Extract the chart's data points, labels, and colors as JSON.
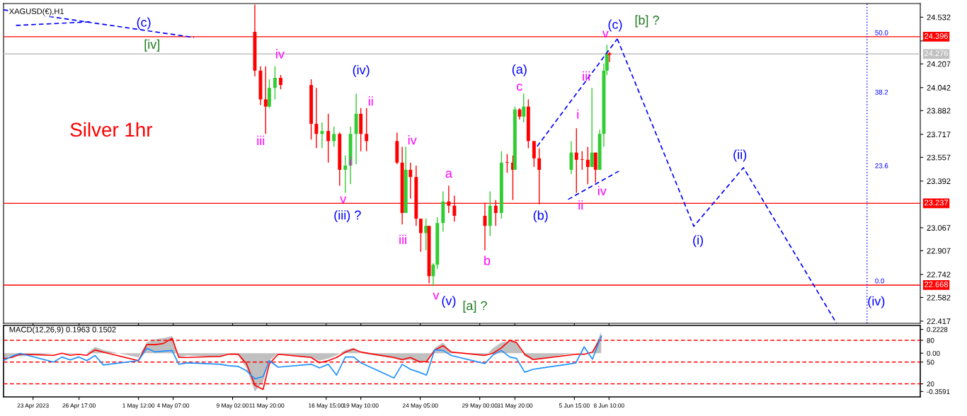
{
  "chart_data": [
    {
      "type": "candlestick",
      "title": "XAGUSD(€),H1",
      "tick_labels": "y",
      "grid": false,
      "xlim": [
        "2023-04-20T15:00",
        "2023-07-03T12:00"
      ],
      "ylim": [
        22.402,
        24.627
      ],
      "xticks": [
        {
          "value": "2023-04-23",
          "label": null
        },
        {
          "value": "2023-04-26T17:00",
          "label": null
        },
        {
          "value": "2023-05-01T12:00",
          "label": null
        },
        {
          "value": "2023-05-04T07:00",
          "label": null
        },
        {
          "value": "2023-05-09T02:00",
          "label": null
        },
        {
          "value": "2023-05-11T20:00",
          "label": null
        },
        {
          "value": "2023-05-16T15:00",
          "label": null
        },
        {
          "value": "2023-05-19T10:00",
          "label": null
        },
        {
          "value": "2023-05-24T05:00",
          "label": null
        },
        {
          "value": "2023-05-29T00:00",
          "label": null
        },
        {
          "value": "2023-05-31T20:00",
          "label": null
        },
        {
          "value": "2023-06-05T15:00",
          "label": null
        },
        {
          "value": "2023-06-08T10:00",
          "label": null
        }
      ],
      "yticks": [
        24.532,
        {
          "value": 24.367,
          "label": null
        },
        24.207,
        24.042,
        23.882,
        23.717,
        23.557,
        23.392,
        23.067,
        22.907,
        22.742,
        22.582,
        22.417
      ],
      "x": [
        "2023-05-10T21:00",
        "2023-05-11T08:00",
        "2023-05-11T18:00",
        "2023-05-12T01:00",
        "2023-05-12T12:00",
        "2023-05-12T23:00",
        "2023-05-15T10:00",
        "2023-05-15T20:00",
        "2023-05-16T07:00",
        "2023-05-16T19:00",
        "2023-05-17T06:00",
        "2023-05-17T17:00",
        "2023-05-18T04:00",
        "2023-05-18T14:00",
        "2023-05-19T01:00",
        "2023-05-19T10:00",
        "2023-05-19T21:00",
        "2023-05-22T08:00",
        "2023-05-22T18:00",
        "2023-05-23T01:00",
        "2023-05-23T10:00",
        "2023-05-23T21:00",
        "2023-05-24T06:00",
        "2023-05-24T16:00",
        "2023-05-24T22:00",
        "2023-05-25T06:00",
        "2023-05-25T14:00",
        "2023-05-26T01:00",
        "2023-05-26T12:00",
        "2023-05-26T23:00",
        "2023-05-29T10:00",
        "2023-05-29T20:00",
        "2023-05-30T07:00",
        "2023-05-30T18:00",
        "2023-05-31T05:00",
        "2023-05-31T16:00",
        "2023-05-31T20:00",
        "2023-06-01T05:00",
        "2023-06-01T13:00",
        "2023-06-01T22:00",
        "2023-06-02T09:00",
        "2023-06-02T19:00",
        "2023-06-05T09:00",
        "2023-06-05T19:00",
        "2023-06-06T06:00",
        "2023-06-06T17:00",
        "2023-06-07T01:00",
        "2023-06-07T08:00",
        "2023-06-07T16:00",
        "2023-06-08T00:00",
        "2023-06-08T06:00",
        "2023-06-08T11:00"
      ],
      "ohlc": [
        [
          24.43,
          24.62,
          24.12,
          24.16
        ],
        [
          24.16,
          24.19,
          23.92,
          23.96
        ],
        [
          23.96,
          24.19,
          23.72,
          23.91
        ],
        [
          23.91,
          24.1,
          23.9,
          24.04
        ],
        [
          24.04,
          24.19,
          23.96,
          24.11
        ],
        [
          24.11,
          24.13,
          24.03,
          24.06
        ],
        [
          24.06,
          24.1,
          23.68,
          23.79
        ],
        [
          23.79,
          24.04,
          23.62,
          23.72
        ],
        [
          23.72,
          23.8,
          23.62,
          23.74
        ],
        [
          23.74,
          23.86,
          23.52,
          23.67
        ],
        [
          23.67,
          23.77,
          23.63,
          23.72
        ],
        [
          23.72,
          23.73,
          23.36,
          23.47
        ],
        [
          23.47,
          23.57,
          23.31,
          23.5
        ],
        [
          23.5,
          23.77,
          23.37,
          23.72
        ],
        [
          23.72,
          24.0,
          23.51,
          23.86
        ],
        [
          23.86,
          23.9,
          23.6,
          23.72
        ],
        [
          23.72,
          23.9,
          23.6,
          23.67
        ],
        [
          23.67,
          23.73,
          23.51,
          23.52
        ],
        [
          23.52,
          23.63,
          23.09,
          23.17
        ],
        [
          23.17,
          23.63,
          23.17,
          23.47
        ],
        [
          23.47,
          23.52,
          23.27,
          23.42
        ],
        [
          23.42,
          23.5,
          23.08,
          23.13
        ],
        [
          23.13,
          23.13,
          22.9,
          23.03
        ],
        [
          23.03,
          23.13,
          22.91,
          23.08
        ],
        [
          23.08,
          23.08,
          22.68,
          22.73
        ],
        [
          22.73,
          22.82,
          22.66,
          22.81
        ],
        [
          22.81,
          23.14,
          22.78,
          23.1
        ],
        [
          23.1,
          23.32,
          23.04,
          23.25
        ],
        [
          23.25,
          23.36,
          23.17,
          23.22
        ],
        [
          23.22,
          23.29,
          23.11,
          23.15
        ],
        [
          23.15,
          23.24,
          22.91,
          23.08
        ],
        [
          23.08,
          23.32,
          23.01,
          23.22
        ],
        [
          23.22,
          23.26,
          23.08,
          23.17
        ],
        [
          23.17,
          23.6,
          23.13,
          23.52
        ],
        [
          23.52,
          23.58,
          23.45,
          23.52
        ],
        [
          23.52,
          23.57,
          23.26,
          23.47
        ],
        [
          23.47,
          23.91,
          23.47,
          23.89
        ],
        [
          23.89,
          23.9,
          23.82,
          23.84
        ],
        [
          23.84,
          24.0,
          23.8,
          23.91
        ],
        [
          23.91,
          23.96,
          23.62,
          23.67
        ],
        [
          23.67,
          23.67,
          23.49,
          23.55
        ],
        [
          23.55,
          23.62,
          23.23,
          23.47
        ],
        [
          23.47,
          23.67,
          23.44,
          23.59
        ],
        [
          23.59,
          23.76,
          23.31,
          23.54
        ],
        [
          23.54,
          23.6,
          23.47,
          23.54
        ],
        [
          23.54,
          23.63,
          23.37,
          23.49
        ],
        [
          23.49,
          24.04,
          23.49,
          23.59
        ],
        [
          23.59,
          23.59,
          23.38,
          23.47
        ],
        [
          23.47,
          23.75,
          23.47,
          23.72
        ],
        [
          23.72,
          24.21,
          23.63,
          24.16
        ],
        [
          24.16,
          24.34,
          24.13,
          24.28
        ],
        [
          24.28,
          24.29,
          24.22,
          24.27
        ]
      ],
      "colors": [
        "#ff0000",
        "#ff0000",
        "#ff0000",
        "#32cd32",
        "#32cd32",
        "#ff0000",
        "#ff0000",
        "#ff0000",
        "#32cd32",
        "#ff0000",
        "#32cd32",
        "#ff0000",
        "#32cd32",
        "#32cd32",
        "#32cd32",
        "#ff0000",
        "#ff0000",
        "#ff0000",
        "#ff0000",
        "#32cd32",
        "#ff0000",
        "#ff0000",
        "#ff0000",
        "#32cd32",
        "#ff0000",
        "#32cd32",
        "#32cd32",
        "#32cd32",
        "#ff0000",
        "#ff0000",
        "#ff0000",
        "#32cd32",
        "#ff0000",
        "#32cd32",
        "#ff0000",
        "#ff0000",
        "#32cd32",
        "#ff0000",
        "#32cd32",
        "#ff0000",
        "#ff0000",
        "#ff0000",
        "#32cd32",
        "#ff0000",
        "#ff0000",
        "#ff0000",
        "#32cd32",
        "#ff0000",
        "#32cd32",
        "#32cd32",
        "#32cd32",
        "#ff0000"
      ],
      "series": [
        {
          "type": "line",
          "color": "#0000ff",
          "line_style": "dashed",
          "x": [
            "2023-06-09T02:00",
            "2023-06-15T06:00",
            "2023-06-19T06:00",
            "2023-06-26T18:00"
          ],
          "values": [
            24.381,
            23.077,
            23.485,
            22.402
          ]
        },
        {
          "type": "line",
          "color": "#0000ff",
          "line_style": "dashed",
          "x": [
            "2023-06-02T15:00",
            "2023-06-09T02:00"
          ],
          "values": [
            23.633,
            24.381
          ]
        },
        {
          "type": "line",
          "color": "#0000ff",
          "line_style": "dashed",
          "x": [
            "2023-06-05T03:00",
            "2023-06-09T05:00"
          ],
          "values": [
            23.264,
            23.461
          ]
        },
        {
          "type": "line",
          "color": "#0000ff",
          "line_style": "dashed",
          "x": [
            "2023-04-20T15:00",
            "2023-05-05T23:00"
          ],
          "values": [
            24.583,
            24.391
          ]
        },
        {
          "type": "line",
          "color": "#0000ff",
          "line_style": "dashed",
          "x": [
            "2023-04-21T15:00",
            "2023-04-27T17:00"
          ],
          "values": [
            24.475,
            24.5
          ]
        }
      ],
      "ref_lines": [
        {
          "axis": "y",
          "value": 24.396,
          "label": "24.396",
          "color": "#ff0000",
          "line_style": "solid"
        },
        {
          "axis": "y",
          "value": 24.276,
          "label": "24.276",
          "color": "#c0c0c0",
          "line_style": "solid"
        },
        {
          "axis": "y",
          "value": 23.237,
          "label": "23.237",
          "color": "#ff0000",
          "line_style": "solid"
        },
        {
          "axis": "y",
          "value": 22.668,
          "label": "22.668",
          "color": "#ff0000",
          "line_style": "solid"
        },
        {
          "axis": "x",
          "value": "2023-06-29T05:00",
          "color": "#0000ff",
          "line_style": "dotted"
        }
      ],
      "annotations": [
        "Silver 1hr",
        "(c)",
        "[iv]",
        "50.0",
        "38.2",
        "23.6",
        "0.0",
        "(iv)",
        {
          "text": "iii",
          "x": "2023-05-11T18:00",
          "y": 23.72
        },
        {
          "text": "iv",
          "x": "2023-05-12T12:00",
          "y": 24.19
        },
        {
          "text": "v",
          "x": "2023-05-18T04:00",
          "y": 23.31
        },
        {
          "text": "i",
          "x": "2023-05-19T01:00",
          "y": 23.51
        },
        {
          "text": "ii",
          "x": "2023-05-19T21:00",
          "y": 23.9
        },
        {
          "text": "iv",
          "x": "2023-05-23T01:00",
          "y": 23.63
        },
        {
          "text": "iii",
          "x": "2023-05-22T18:00",
          "y": 23.09
        },
        {
          "text": "v",
          "x": "2023-05-25T06:00",
          "y": 22.66
        },
        {
          "text": "a",
          "x": "2023-05-26T12:00",
          "y": 23.36
        },
        {
          "text": "b",
          "x": "2023-05-29T10:00",
          "y": 22.91
        },
        {
          "text": "c",
          "x": "2023-06-01T13:00",
          "y": 24.0
        },
        {
          "text": "i",
          "x": "2023-06-05T19:00",
          "y": 23.76
        },
        {
          "text": "iii",
          "x": "2023-06-07T01:00",
          "y": 24.04
        },
        {
          "text": "ii",
          "x": "2023-06-05T19:00",
          "y": 23.31
        },
        {
          "text": "iv",
          "x": "2023-06-07T08:00",
          "y": 23.38
        },
        {
          "text": "v",
          "x": "2023-06-08T06:00",
          "y": 24.34
        },
        {
          "text": "(iv)",
          "x": "2023-05-19T01:00",
          "y": 24.0
        },
        {
          "text": "(iii) ?",
          "x": "2023-05-18T04:00",
          "y": 23.31
        },
        {
          "text": "(a)",
          "x": "2023-06-01T13:00",
          "y": 24.0
        },
        {
          "text": "(b)",
          "x": "2023-06-02T19:00",
          "y": 23.23
        },
        {
          "text": "(v)",
          "x": "2023-05-25T06:00",
          "y": 22.66
        },
        {
          "text": "(c)",
          "x": "2023-06-09T02:00",
          "y": 24.381
        },
        {
          "text": "(i)",
          "x": "2023-06-15T06:00",
          "y": 23.077
        },
        {
          "text": "(ii)",
          "x": "2023-06-19T06:00",
          "y": 23.485
        },
        {
          "text": "[a] ?",
          "x": "2023-05-25T06:00",
          "y": 22.66
        },
        {
          "text": "[b] ?",
          "x": "2023-06-09T02:00",
          "y": 24.381
        }
      ]
    },
    {
      "type": "line",
      "title": "MACD(12,26,9) 0.1963 0.1502",
      "grid": false,
      "xlim": [
        "2023-04-20T15:00",
        "2023-07-03T12:00"
      ],
      "ylim": [
        -0.41,
        0.26
      ],
      "y2lim": [
        2,
        100.5
      ],
      "xticks": [
        {
          "value": "2023-04-23",
          "label": "23 Apr 2023"
        },
        {
          "value": "2023-04-26T17:00",
          "label": "26 Apr 17:00"
        },
        {
          "value": "2023-05-01T12:00",
          "label": "1 May 12:00"
        },
        {
          "value": "2023-05-04T07:00",
          "label": "4 May 07:00"
        },
        {
          "value": "2023-05-09T02:00",
          "label": "9 May 02:00"
        },
        {
          "value": "2023-05-11T20:00",
          "label": "11 May 20:00"
        },
        {
          "value": "2023-05-16T15:00",
          "label": "16 May 15:00"
        },
        {
          "value": "2023-05-19T10:00",
          "label": "19 May 10:00"
        },
        {
          "value": "2023-05-24T05:00",
          "label": "24 May 05:00"
        },
        {
          "value": "2023-05-29T00:00",
          "label": "29 May 00:00"
        },
        {
          "value": "2023-05-31T20:00",
          "label": "31 May 20:00"
        },
        {
          "value": "2023-06-05T15:00",
          "label": "5 Jun 15:00"
        },
        {
          "value": "2023-06-08T10:00",
          "label": "8 Jun 10:00"
        }
      ],
      "yticks": [
        0.2228,
        {
          "value": 0,
          "label": "0.00"
        },
        -0.3591
      ],
      "y2ticks": [
        80,
        50,
        20
      ],
      "ref_lines": [
        {
          "axis": "y2",
          "value": 80,
          "color": "#ff0000",
          "line_style": "dashed"
        },
        {
          "axis": "y2",
          "value": 50,
          "color": "#ff0000",
          "line_style": "dashed"
        },
        {
          "axis": "y2",
          "value": 20,
          "color": "#ff0000",
          "line_style": "dashed"
        }
      ],
      "x": [
        "2023-04-20T15:00",
        "2023-04-21T07:00",
        "2023-04-21T23:00",
        "2023-04-24T16:00",
        "2023-04-25T08:00",
        "2023-04-26T00:00",
        "2023-04-26T16:00",
        "2023-04-27T08:00",
        "2023-04-28T00:00",
        "2023-04-28T16:00",
        "2023-05-01T12:00",
        "2023-05-02T04:00",
        "2023-05-02T20:00",
        "2023-05-03T12:00",
        "2023-05-04T05:00",
        "2023-05-04T18:00",
        "2023-05-05T10:00",
        "2023-05-08T02:00",
        "2023-05-08T18:00",
        "2023-05-09T13:00",
        "2023-05-10T05:00",
        "2023-05-10T21:00",
        "2023-05-11T13:00",
        "2023-05-12T01:00",
        "2023-05-12T18:00",
        "2023-05-15T10:00",
        "2023-05-16T02:00",
        "2023-05-16T19:00",
        "2023-05-17T11:00",
        "2023-05-18T04:00",
        "2023-05-18T20:00",
        "2023-05-19T10:00",
        "2023-05-22T02:00",
        "2023-05-22T18:00",
        "2023-05-23T10:00",
        "2023-05-24T03:00",
        "2023-05-24T17:00",
        "2023-05-25T09:00",
        "2023-05-26T01:00",
        "2023-05-26T17:00",
        "2023-05-29T10:00",
        "2023-05-30T02:00",
        "2023-05-30T18:00",
        "2023-05-31T10:00",
        "2023-05-31T23:00",
        "2023-06-01T15:00",
        "2023-06-02T07:00",
        "2023-06-05T02:00",
        "2023-06-05T18:00",
        "2023-06-06T10:00",
        "2023-06-07T02:00",
        "2023-06-07T19:00"
      ],
      "series": [
        {
          "type": "area",
          "color": "#c0c0c0",
          "values": [
            -0.05,
            -0.02,
            -0.03,
            0.0,
            0.0,
            -0.01,
            0.0,
            0.0,
            0.06,
            0.03,
            -0.04,
            0.1,
            0.13,
            0.14,
            0.16,
            -0.04,
            -0.02,
            -0.04,
            0.0,
            -0.02,
            -0.14,
            -0.36,
            -0.27,
            -0.07,
            0.0,
            -0.04,
            -0.07,
            -0.05,
            -0.02,
            0.03,
            0.05,
            0.0,
            -0.05,
            -0.07,
            -0.06,
            -0.09,
            -0.08,
            0.05,
            0.1,
            0.01,
            -0.03,
            0.05,
            0.1,
            0.11,
            0.1,
            -0.03,
            -0.06,
            -0.01,
            0.0,
            0.0,
            0.01,
            0.2
          ]
        },
        {
          "type": "line",
          "color": "#ff0000",
          "values": [
            -0.05,
            -0.04,
            -0.01,
            -0.02,
            0.0,
            -0.02,
            -0.01,
            -0.02,
            0.03,
            0.01,
            -0.07,
            0.08,
            0.08,
            0.09,
            0.14,
            -0.04,
            -0.04,
            -0.03,
            -0.01,
            -0.01,
            -0.1,
            -0.3,
            -0.34,
            -0.1,
            -0.01,
            -0.04,
            -0.09,
            -0.07,
            -0.04,
            0.01,
            0.04,
            0.01,
            -0.04,
            -0.06,
            -0.04,
            -0.08,
            -0.08,
            0.03,
            0.07,
            0.01,
            -0.02,
            0.0,
            0.05,
            0.12,
            0.1,
            -0.01,
            -0.06,
            -0.02,
            -0.01,
            -0.01,
            0.01,
            0.15
          ]
        },
        {
          "type": "line",
          "color": "#1e90ff",
          "axis": "y2",
          "values": [
            52,
            58,
            62,
            50,
            57,
            53,
            57,
            52,
            59,
            46,
            52,
            69,
            64,
            65,
            66,
            47,
            49,
            47,
            45,
            44,
            38,
            27,
            30,
            52,
            43,
            47,
            42,
            47,
            32,
            57,
            57,
            49,
            28,
            47,
            40,
            36,
            32,
            67,
            66,
            59,
            48,
            60,
            66,
            57,
            55,
            36,
            40,
            47,
            49,
            71,
            54,
            86
          ]
        }
      ]
    }
  ]
}
